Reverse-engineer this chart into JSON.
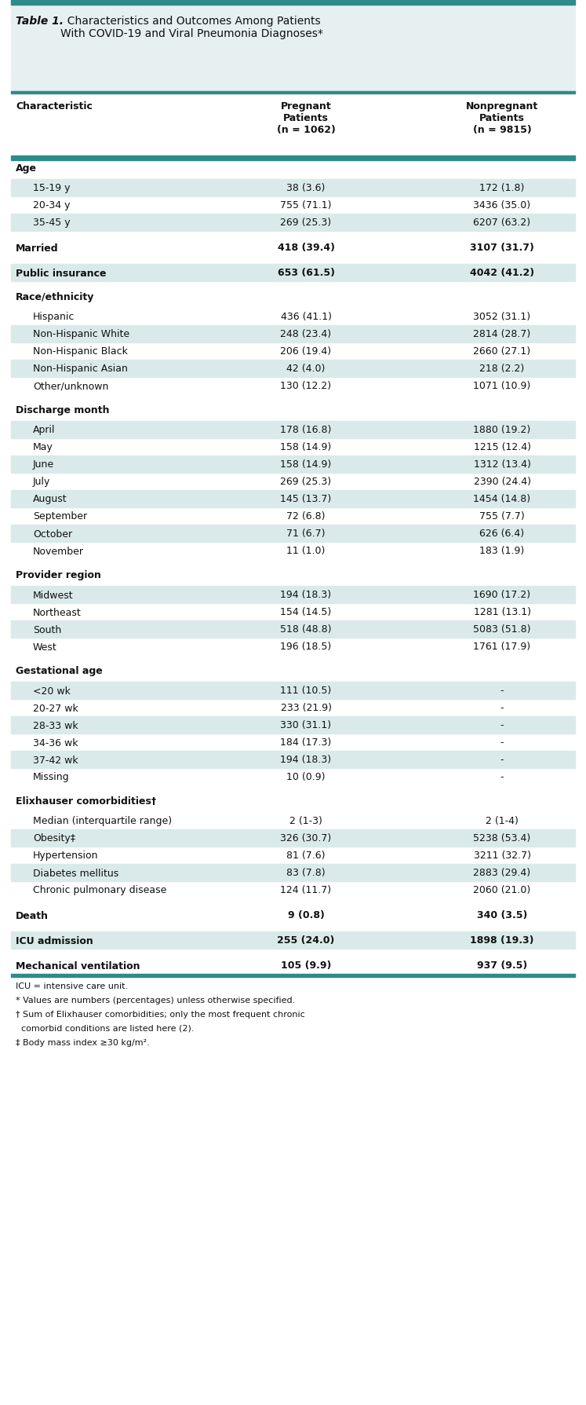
{
  "title_bold": "Table 1.",
  "title_rest": "  Characteristics and Outcomes Among Patients\nWith COVID-19 and Viral Pneumonia Diagnoses*",
  "teal_color": "#2e8b8b",
  "light_teal_bg": "#daeaea",
  "rows": [
    {
      "label": "Characteristic",
      "v1": "Pregnant\nPatients\n(n = 1062)",
      "v2": "Nonpregnant\nPatients\n(n = 9815)",
      "type": "col_header"
    },
    {
      "label": "Age",
      "v1": "",
      "v2": "",
      "type": "section_header"
    },
    {
      "label": "15-19 y",
      "v1": "38 (3.6)",
      "v2": "172 (1.8)",
      "type": "data",
      "shade": true,
      "indent": true
    },
    {
      "label": "20-34 y",
      "v1": "755 (71.1)",
      "v2": "3436 (35.0)",
      "type": "data",
      "shade": false,
      "indent": true
    },
    {
      "label": "35-45 y",
      "v1": "269 (25.3)",
      "v2": "6207 (63.2)",
      "type": "data",
      "shade": true,
      "indent": true
    },
    {
      "label": "",
      "v1": "",
      "v2": "",
      "type": "spacer"
    },
    {
      "label": "Married",
      "v1": "418 (39.4)",
      "v2": "3107 (31.7)",
      "type": "bold_data",
      "shade": false,
      "indent": false
    },
    {
      "label": "",
      "v1": "",
      "v2": "",
      "type": "spacer"
    },
    {
      "label": "Public insurance",
      "v1": "653 (61.5)",
      "v2": "4042 (41.2)",
      "type": "bold_data",
      "shade": true,
      "indent": false
    },
    {
      "label": "",
      "v1": "",
      "v2": "",
      "type": "spacer"
    },
    {
      "label": "Race/ethnicity",
      "v1": "",
      "v2": "",
      "type": "section_header"
    },
    {
      "label": "Hispanic",
      "v1": "436 (41.1)",
      "v2": "3052 (31.1)",
      "type": "data",
      "shade": false,
      "indent": true
    },
    {
      "label": "Non-Hispanic White",
      "v1": "248 (23.4)",
      "v2": "2814 (28.7)",
      "type": "data",
      "shade": true,
      "indent": true
    },
    {
      "label": "Non-Hispanic Black",
      "v1": "206 (19.4)",
      "v2": "2660 (27.1)",
      "type": "data",
      "shade": false,
      "indent": true
    },
    {
      "label": "Non-Hispanic Asian",
      "v1": "42 (4.0)",
      "v2": "218 (2.2)",
      "type": "data",
      "shade": true,
      "indent": true
    },
    {
      "label": "Other/unknown",
      "v1": "130 (12.2)",
      "v2": "1071 (10.9)",
      "type": "data",
      "shade": false,
      "indent": true
    },
    {
      "label": "",
      "v1": "",
      "v2": "",
      "type": "spacer"
    },
    {
      "label": "Discharge month",
      "v1": "",
      "v2": "",
      "type": "section_header"
    },
    {
      "label": "April",
      "v1": "178 (16.8)",
      "v2": "1880 (19.2)",
      "type": "data",
      "shade": true,
      "indent": true
    },
    {
      "label": "May",
      "v1": "158 (14.9)",
      "v2": "1215 (12.4)",
      "type": "data",
      "shade": false,
      "indent": true
    },
    {
      "label": "June",
      "v1": "158 (14.9)",
      "v2": "1312 (13.4)",
      "type": "data",
      "shade": true,
      "indent": true
    },
    {
      "label": "July",
      "v1": "269 (25.3)",
      "v2": "2390 (24.4)",
      "type": "data",
      "shade": false,
      "indent": true
    },
    {
      "label": "August",
      "v1": "145 (13.7)",
      "v2": "1454 (14.8)",
      "type": "data",
      "shade": true,
      "indent": true
    },
    {
      "label": "September",
      "v1": "72 (6.8)",
      "v2": "755 (7.7)",
      "type": "data",
      "shade": false,
      "indent": true
    },
    {
      "label": "October",
      "v1": "71 (6.7)",
      "v2": "626 (6.4)",
      "type": "data",
      "shade": true,
      "indent": true
    },
    {
      "label": "November",
      "v1": "11 (1.0)",
      "v2": "183 (1.9)",
      "type": "data",
      "shade": false,
      "indent": true
    },
    {
      "label": "",
      "v1": "",
      "v2": "",
      "type": "spacer"
    },
    {
      "label": "Provider region",
      "v1": "",
      "v2": "",
      "type": "section_header"
    },
    {
      "label": "Midwest",
      "v1": "194 (18.3)",
      "v2": "1690 (17.2)",
      "type": "data",
      "shade": true,
      "indent": true
    },
    {
      "label": "Northeast",
      "v1": "154 (14.5)",
      "v2": "1281 (13.1)",
      "type": "data",
      "shade": false,
      "indent": true
    },
    {
      "label": "South",
      "v1": "518 (48.8)",
      "v2": "5083 (51.8)",
      "type": "data",
      "shade": true,
      "indent": true
    },
    {
      "label": "West",
      "v1": "196 (18.5)",
      "v2": "1761 (17.9)",
      "type": "data",
      "shade": false,
      "indent": true
    },
    {
      "label": "",
      "v1": "",
      "v2": "",
      "type": "spacer"
    },
    {
      "label": "Gestational age",
      "v1": "",
      "v2": "",
      "type": "section_header"
    },
    {
      "label": "<20 wk",
      "v1": "111 (10.5)",
      "v2": "-",
      "type": "data",
      "shade": true,
      "indent": true
    },
    {
      "label": "20-27 wk",
      "v1": "233 (21.9)",
      "v2": "-",
      "type": "data",
      "shade": false,
      "indent": true
    },
    {
      "label": "28-33 wk",
      "v1": "330 (31.1)",
      "v2": "-",
      "type": "data",
      "shade": true,
      "indent": true
    },
    {
      "label": "34-36 wk",
      "v1": "184 (17.3)",
      "v2": "-",
      "type": "data",
      "shade": false,
      "indent": true
    },
    {
      "label": "37-42 wk",
      "v1": "194 (18.3)",
      "v2": "-",
      "type": "data",
      "shade": true,
      "indent": true
    },
    {
      "label": "Missing",
      "v1": "10 (0.9)",
      "v2": "-",
      "type": "data",
      "shade": false,
      "indent": true
    },
    {
      "label": "",
      "v1": "",
      "v2": "",
      "type": "spacer"
    },
    {
      "label": "Elixhauser comorbidities†",
      "v1": "",
      "v2": "",
      "type": "section_header"
    },
    {
      "label": "Median (interquartile range)",
      "v1": "2 (1-3)",
      "v2": "2 (1-4)",
      "type": "data",
      "shade": false,
      "indent": true
    },
    {
      "label": "Obesity‡",
      "v1": "326 (30.7)",
      "v2": "5238 (53.4)",
      "type": "data",
      "shade": true,
      "indent": true
    },
    {
      "label": "Hypertension",
      "v1": "81 (7.6)",
      "v2": "3211 (32.7)",
      "type": "data",
      "shade": false,
      "indent": true
    },
    {
      "label": "Diabetes mellitus",
      "v1": "83 (7.8)",
      "v2": "2883 (29.4)",
      "type": "data",
      "shade": true,
      "indent": true
    },
    {
      "label": "Chronic pulmonary disease",
      "v1": "124 (11.7)",
      "v2": "2060 (21.0)",
      "type": "data",
      "shade": false,
      "indent": true
    },
    {
      "label": "",
      "v1": "",
      "v2": "",
      "type": "spacer"
    },
    {
      "label": "Death",
      "v1": "9 (0.8)",
      "v2": "340 (3.5)",
      "type": "bold_data",
      "shade": false,
      "indent": false
    },
    {
      "label": "",
      "v1": "",
      "v2": "",
      "type": "spacer"
    },
    {
      "label": "ICU admission",
      "v1": "255 (24.0)",
      "v2": "1898 (19.3)",
      "type": "bold_data",
      "shade": true,
      "indent": false
    },
    {
      "label": "",
      "v1": "",
      "v2": "",
      "type": "spacer"
    },
    {
      "label": "Mechanical ventilation",
      "v1": "105 (9.9)",
      "v2": "937 (9.5)",
      "type": "bold_data",
      "shade": false,
      "indent": false
    }
  ],
  "footnotes": [
    "ICU = intensive care unit.",
    "* Values are numbers (percentages) unless otherwise specified.",
    "† Sum of Elixhauser comorbidities; only the most frequent chronic",
    "  comorbid conditions are listed here (2).",
    "‡ Body mass index ≥30 kg/m²."
  ]
}
